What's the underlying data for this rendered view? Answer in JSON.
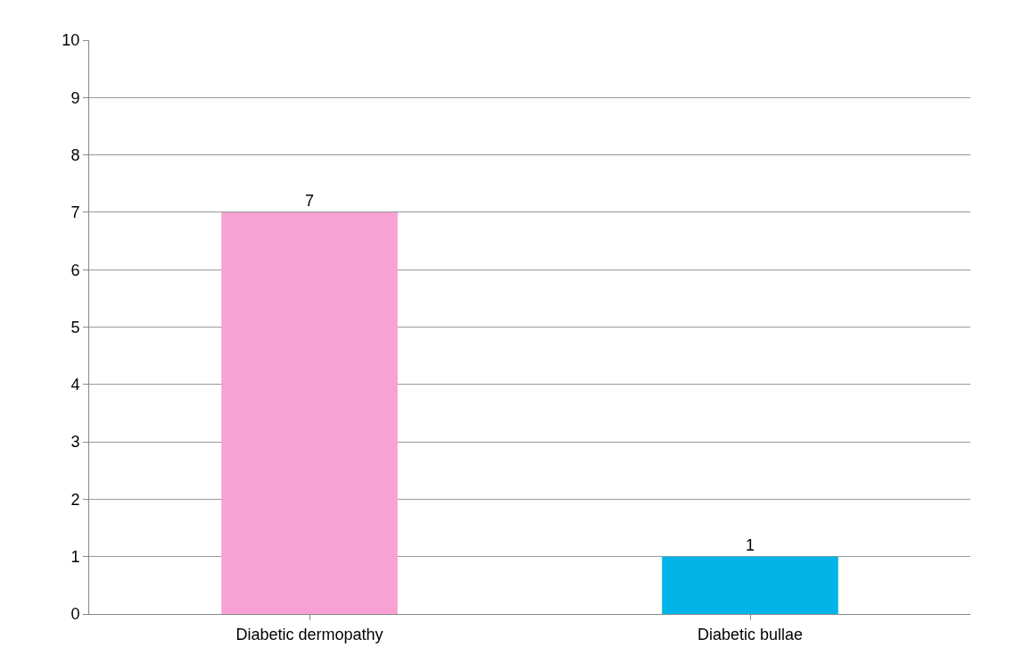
{
  "chart_data": {
    "type": "bar",
    "categories": [
      "Diabetic dermopathy",
      "Diabetic bullae"
    ],
    "values": [
      7,
      1
    ],
    "colors": [
      "#f7a1d4",
      "#00b4e8"
    ],
    "ylim": [
      0,
      10
    ],
    "yticks": [
      0,
      1,
      2,
      3,
      4,
      5,
      6,
      7,
      8,
      9,
      10
    ],
    "grid": "y",
    "data_labels": true,
    "legend": false
  }
}
